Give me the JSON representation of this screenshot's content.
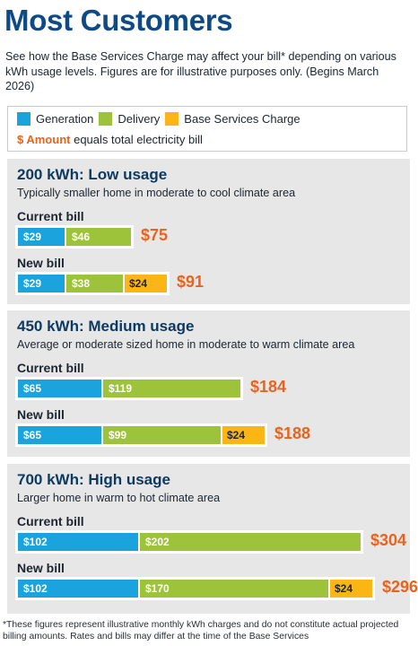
{
  "title": "Most Customers",
  "intro": "See how the Base Services Charge may affect your bill* depending on various kWh usage levels. Figures are for illustrative purposes only. (Begins March 2026)",
  "legend": {
    "items": [
      {
        "label": "Generation",
        "color": "#1aa3dc"
      },
      {
        "label": "Delivery",
        "color": "#9dc33b"
      },
      {
        "label": "Base Services Charge",
        "color": "#fbb515"
      }
    ],
    "amount_label": "$ Amount",
    "amount_text": "equals total electricity bill"
  },
  "colors": {
    "generation": "#1aa3dc",
    "delivery": "#9dc33b",
    "base": "#fbb515",
    "total": "#e8641c"
  },
  "chart_data": {
    "type": "bar",
    "orientation": "horizontal-stacked",
    "series_names": [
      "Generation",
      "Delivery",
      "Base Services Charge"
    ],
    "panels": [
      {
        "title": "200 kWh: Low usage",
        "subtitle": "Typically smaller home in moderate to cool climate area",
        "bills": [
          {
            "label": "Current bill",
            "segments": [
              {
                "series": "generation",
                "value": 29,
                "label": "$29"
              },
              {
                "series": "delivery",
                "value": 46,
                "label": "$46"
              }
            ],
            "total": 75,
            "total_label": "$75"
          },
          {
            "label": "New bill",
            "segments": [
              {
                "series": "generation",
                "value": 29,
                "label": "$29"
              },
              {
                "series": "delivery",
                "value": 38,
                "label": "$38"
              },
              {
                "series": "base",
                "value": 24,
                "label": "$24"
              }
            ],
            "total": 91,
            "total_label": "$91"
          }
        ]
      },
      {
        "title": "450 kWh: Medium usage",
        "subtitle": "Average or moderate sized home in moderate to warm climate area",
        "bills": [
          {
            "label": "Current bill",
            "segments": [
              {
                "series": "generation",
                "value": 65,
                "label": "$65"
              },
              {
                "series": "delivery",
                "value": 119,
                "label": "$119"
              }
            ],
            "total": 184,
            "total_label": "$184"
          },
          {
            "label": "New bill",
            "segments": [
              {
                "series": "generation",
                "value": 65,
                "label": "$65"
              },
              {
                "series": "delivery",
                "value": 99,
                "label": "$99"
              },
              {
                "series": "base",
                "value": 24,
                "label": "$24"
              }
            ],
            "total": 188,
            "total_label": "$188"
          }
        ]
      },
      {
        "title": "700 kWh: High usage",
        "subtitle": "Larger home in warm to hot climate area",
        "bills": [
          {
            "label": "Current bill",
            "segments": [
              {
                "series": "generation",
                "value": 102,
                "label": "$102"
              },
              {
                "series": "delivery",
                "value": 202,
                "label": "$202"
              }
            ],
            "total": 304,
            "total_label": "$304"
          },
          {
            "label": "New bill",
            "segments": [
              {
                "series": "generation",
                "value": 102,
                "label": "$102"
              },
              {
                "series": "delivery",
                "value": 170,
                "label": "$170"
              },
              {
                "series": "base",
                "value": 24,
                "label": "$24"
              }
            ],
            "total": 296,
            "total_label": "$296"
          }
        ]
      }
    ]
  },
  "footnote": "*These figures represent illustrative monthly kWh charges and do not constitute actual projected billing amounts. Rates and bills may differ at the time of the Base Services"
}
